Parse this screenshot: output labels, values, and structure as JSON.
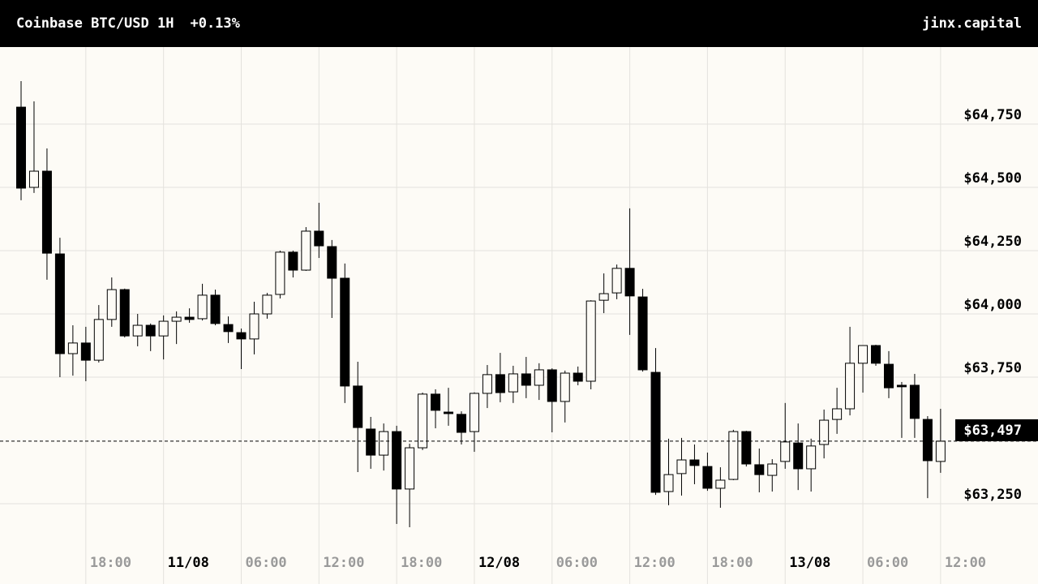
{
  "chart_data": {
    "type": "candlestick",
    "title": "Coinbase BTC/USD 1H",
    "change": "+0.13%",
    "brand": "jinx.capital",
    "up_color": "#fdfbf6",
    "down_color": "#000000",
    "grid": true,
    "categories": [
      null,
      null,
      null,
      null,
      null,
      "18:00",
      null,
      null,
      null,
      null,
      null,
      "11/08",
      null,
      null,
      null,
      null,
      null,
      "06:00",
      null,
      null,
      null,
      null,
      null,
      "12:00",
      null,
      null,
      null,
      null,
      null,
      "18:00",
      null,
      null,
      null,
      null,
      null,
      "12/08",
      null,
      null,
      null,
      null,
      null,
      "06:00",
      null,
      null,
      null,
      null,
      null,
      "12:00",
      null,
      null,
      null,
      null,
      null,
      "18:00",
      null,
      null,
      null,
      null,
      null,
      "13/08",
      null,
      null,
      null,
      null,
      null,
      "06:00",
      null,
      null,
      null,
      null,
      null,
      "12:00"
    ],
    "open": [
      64817,
      64500,
      64564,
      64237,
      63843,
      63885,
      63817,
      63978,
      64096,
      63913,
      63955,
      63913,
      63971,
      63987,
      63981,
      64074,
      63958,
      63926,
      63901,
      64000,
      64077,
      64244,
      64173,
      64327,
      64266,
      64141,
      63715,
      63545,
      63442,
      63535,
      63308,
      63471,
      63683,
      63612,
      63603,
      63535,
      63686,
      63760,
      63692,
      63763,
      63718,
      63779,
      63654,
      63766,
      63734,
      64054,
      64083,
      64180,
      64067,
      63769,
      63298,
      63369,
      63423,
      63397,
      63311,
      63346,
      63535,
      63404,
      63362,
      63417,
      63490,
      63388,
      63484,
      63583,
      63625,
      63805,
      63875,
      63801,
      63718,
      63718,
      63583,
      63417
    ],
    "high": [
      64920,
      64840,
      64654,
      64301,
      63955,
      63949,
      64035,
      64144,
      64100,
      64000,
      63962,
      63994,
      64010,
      64022,
      64119,
      64096,
      63990,
      63942,
      64048,
      64083,
      64250,
      64250,
      64343,
      64439,
      64292,
      64199,
      63811,
      63593,
      63567,
      63558,
      63487,
      63689,
      63702,
      63708,
      63615,
      63690,
      63798,
      63846,
      63795,
      63830,
      63805,
      63785,
      63776,
      63792,
      64054,
      64160,
      64195,
      64417,
      64099,
      63865,
      63507,
      63510,
      63484,
      63452,
      63394,
      63542,
      63538,
      63468,
      63426,
      63648,
      63567,
      63507,
      63622,
      63708,
      63949,
      63875,
      63878,
      63853,
      63731,
      63763,
      63596,
      63625
    ],
    "low": [
      64449,
      64478,
      64135,
      63750,
      63756,
      63734,
      63808,
      63949,
      63907,
      63872,
      63853,
      63820,
      63881,
      63965,
      63974,
      63955,
      63885,
      63782,
      63840,
      63981,
      64061,
      64144,
      64170,
      64221,
      63984,
      63648,
      63375,
      63388,
      63381,
      63170,
      63157,
      63462,
      63548,
      63558,
      63484,
      63455,
      63628,
      63651,
      63648,
      63667,
      63660,
      63532,
      63571,
      63718,
      63702,
      64003,
      64058,
      63917,
      63772,
      63285,
      63244,
      63282,
      63327,
      63301,
      63234,
      63343,
      63397,
      63295,
      63298,
      63388,
      63304,
      63298,
      63429,
      63526,
      63599,
      63689,
      63795,
      63667,
      63510,
      63510,
      63272,
      63372
    ],
    "close": [
      64497,
      64564,
      64240,
      63843,
      63885,
      63817,
      63978,
      64096,
      63913,
      63955,
      63913,
      63971,
      63987,
      63978,
      64074,
      63962,
      63930,
      63901,
      64000,
      64074,
      64244,
      64173,
      64327,
      64269,
      64141,
      63715,
      63551,
      63442,
      63535,
      63308,
      63471,
      63683,
      63619,
      63606,
      63532,
      63686,
      63760,
      63689,
      63763,
      63718,
      63779,
      63654,
      63766,
      63734,
      64051,
      64080,
      64180,
      64071,
      63779,
      63295,
      63365,
      63423,
      63401,
      63311,
      63343,
      63535,
      63407,
      63365,
      63407,
      63494,
      63388,
      63478,
      63580,
      63625,
      63805,
      63875,
      63805,
      63708,
      63712,
      63587,
      63420,
      63497
    ],
    "ylim": [
      63100,
      65050
    ],
    "yticks": [
      {
        "value": 63250,
        "label": "$63,250"
      },
      {
        "value": 63750,
        "label": "$63,750"
      },
      {
        "value": 64000,
        "label": "$64,000"
      },
      {
        "value": 64250,
        "label": "$64,250"
      },
      {
        "value": 64500,
        "label": "$64,500"
      },
      {
        "value": 64750,
        "label": "$64,750"
      }
    ],
    "last_price": {
      "value": 63497,
      "label": "$63,497"
    }
  }
}
